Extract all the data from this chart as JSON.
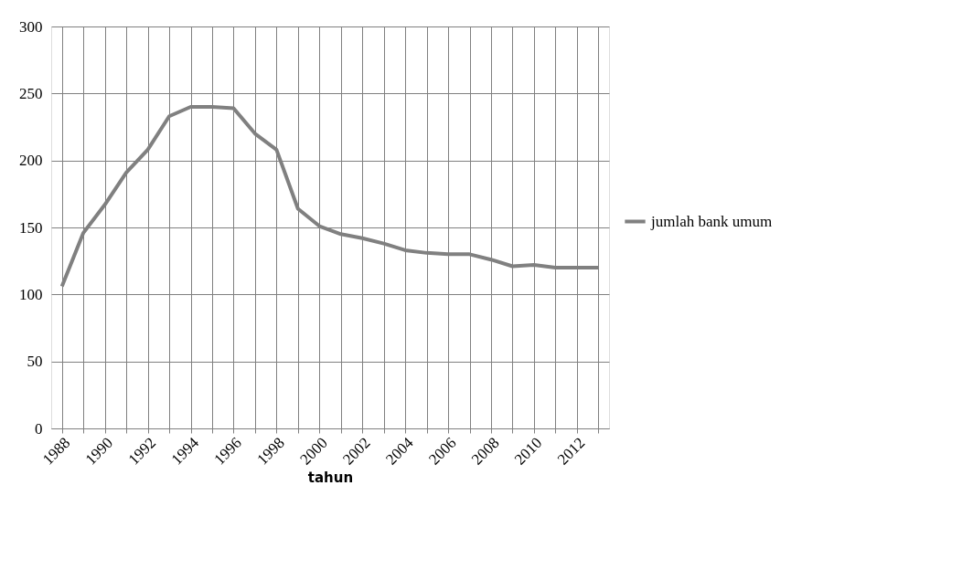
{
  "chart_data": {
    "type": "line",
    "xlabel": "tahun",
    "x": [
      1988,
      1989,
      1990,
      1991,
      1992,
      1993,
      1994,
      1995,
      1996,
      1997,
      1998,
      1999,
      2000,
      2001,
      2002,
      2003,
      2004,
      2005,
      2006,
      2007,
      2008,
      2009,
      2010,
      2011,
      2012,
      2013
    ],
    "series": [
      {
        "name": "jumlah bank umum",
        "color": "#808080",
        "values": [
          106,
          146,
          167,
          191,
          208,
          233,
          240,
          240,
          239,
          220,
          208,
          164,
          151,
          145,
          142,
          138,
          133,
          131,
          130,
          130,
          126,
          121,
          122,
          120,
          120,
          120
        ]
      }
    ],
    "xlim": [
      1987.5,
      2013.5
    ],
    "xticks": [
      1988,
      {
        "value": 1989,
        "label": null
      },
      1990,
      {
        "value": 1991,
        "label": null
      },
      1992,
      {
        "value": 1993,
        "label": null
      },
      1994,
      {
        "value": 1995,
        "label": null
      },
      1996,
      {
        "value": 1997,
        "label": null
      },
      1998,
      {
        "value": 1999,
        "label": null
      },
      2000,
      {
        "value": 2001,
        "label": null
      },
      2002,
      {
        "value": 2003,
        "label": null
      },
      2004,
      {
        "value": 2005,
        "label": null
      },
      2006,
      {
        "value": 2007,
        "label": null
      },
      2008,
      {
        "value": 2009,
        "label": null
      },
      2010,
      {
        "value": 2011,
        "label": null
      },
      2012,
      {
        "value": 2013,
        "label": null
      }
    ],
    "ylim": [
      0,
      300
    ],
    "yticks": [
      0,
      50,
      100,
      150,
      200,
      250,
      300
    ],
    "grid": true,
    "legend": "right",
    "marker": "none",
    "line_style": "solid"
  }
}
